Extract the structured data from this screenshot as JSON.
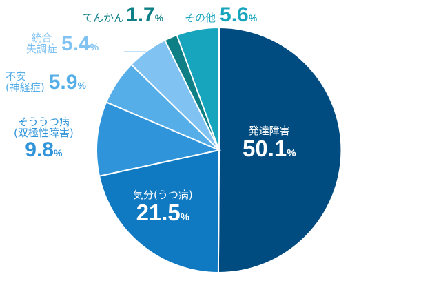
{
  "chart_data": {
    "type": "pie",
    "unit": "%",
    "slices": [
      {
        "name": "発達障害",
        "value": 50.1,
        "display": "50.1",
        "color": "#004b80"
      },
      {
        "name": "気分(うつ病)",
        "value": 21.5,
        "display": "21.5",
        "color": "#0f79c2"
      },
      {
        "name_lines": [
          "そううつ病",
          "(双極性障害)"
        ],
        "value": 9.8,
        "display": "9.8",
        "color": "#2f94d9"
      },
      {
        "name_lines": [
          "不安",
          "(神経症)"
        ],
        "value": 5.9,
        "display": "5.9",
        "color": "#55aee8"
      },
      {
        "name_lines": [
          "統合",
          "失調症"
        ],
        "value": 5.4,
        "display": "5.4",
        "color": "#80c3f2"
      },
      {
        "name": "てんかん",
        "value": 1.7,
        "display": "1.7",
        "color": "#0f7f86"
      },
      {
        "name": "その他",
        "value": 5.6,
        "display": "5.6",
        "color": "#17a5be"
      }
    ]
  }
}
